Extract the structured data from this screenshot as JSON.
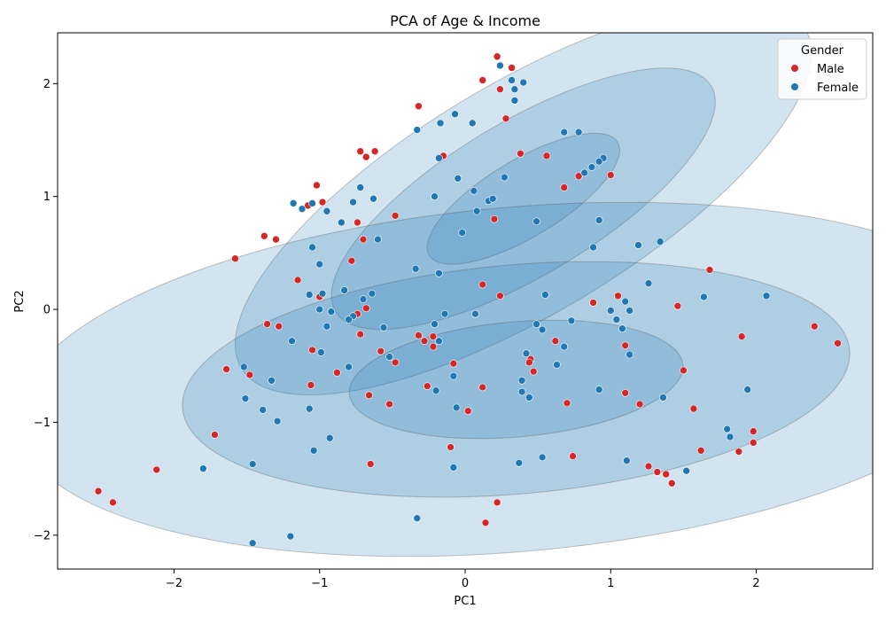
{
  "chart_data": {
    "type": "scatter",
    "title": "PCA of Age & Income",
    "xlabel": "PC1",
    "ylabel": "PC2",
    "xlim": [
      -2.8,
      2.8
    ],
    "ylim": [
      -2.3,
      2.45
    ],
    "xticks": [
      -2,
      -1,
      0,
      1,
      2
    ],
    "yticks": [
      -2,
      -1,
      0,
      1,
      2
    ],
    "xtick_labels": [
      "−2",
      "−1",
      "0",
      "1",
      "2"
    ],
    "ytick_labels": [
      "−2",
      "−1",
      "0",
      "1",
      "2"
    ],
    "grid": false,
    "legend": {
      "title": "Gender",
      "position": "top-right"
    },
    "series": [
      {
        "name": "Male",
        "color": "#d62728",
        "points": [
          [
            0.22,
            2.24
          ],
          [
            0.32,
            2.14
          ],
          [
            0.12,
            2.03
          ],
          [
            0.24,
            1.95
          ],
          [
            -0.32,
            1.8
          ],
          [
            0.28,
            1.69
          ],
          [
            -0.72,
            1.4
          ],
          [
            -0.62,
            1.4
          ],
          [
            -0.68,
            1.35
          ],
          [
            -0.15,
            1.36
          ],
          [
            0.38,
            1.38
          ],
          [
            0.56,
            1.36
          ],
          [
            0.78,
            1.18
          ],
          [
            1.0,
            1.19
          ],
          [
            0.68,
            1.08
          ],
          [
            -1.02,
            1.1
          ],
          [
            -1.08,
            0.92
          ],
          [
            -0.98,
            0.95
          ],
          [
            -0.74,
            0.77
          ],
          [
            -0.48,
            0.83
          ],
          [
            0.2,
            0.8
          ],
          [
            -1.38,
            0.65
          ],
          [
            -1.3,
            0.62
          ],
          [
            -0.7,
            0.62
          ],
          [
            -1.58,
            0.45
          ],
          [
            -0.78,
            0.43
          ],
          [
            -1.15,
            0.26
          ],
          [
            0.12,
            0.22
          ],
          [
            0.24,
            0.12
          ],
          [
            -1.0,
            0.11
          ],
          [
            -0.68,
            0.01
          ],
          [
            -0.74,
            -0.04
          ],
          [
            -1.36,
            -0.13
          ],
          [
            -1.28,
            -0.15
          ],
          [
            -0.72,
            -0.22
          ],
          [
            -0.32,
            -0.23
          ],
          [
            -0.28,
            -0.28
          ],
          [
            -0.22,
            -0.24
          ],
          [
            -0.22,
            -0.33
          ],
          [
            -1.05,
            -0.36
          ],
          [
            -0.58,
            -0.37
          ],
          [
            -0.48,
            -0.47
          ],
          [
            -0.08,
            -0.48
          ],
          [
            0.45,
            -0.44
          ],
          [
            0.44,
            -0.47
          ],
          [
            0.47,
            -0.55
          ],
          [
            0.62,
            -0.28
          ],
          [
            1.1,
            -0.32
          ],
          [
            1.05,
            0.12
          ],
          [
            0.88,
            0.06
          ],
          [
            1.46,
            0.03
          ],
          [
            1.68,
            0.35
          ],
          [
            1.9,
            -0.24
          ],
          [
            1.5,
            -0.54
          ],
          [
            -1.64,
            -0.53
          ],
          [
            -1.48,
            -0.58
          ],
          [
            -0.88,
            -0.56
          ],
          [
            -0.52,
            -0.84
          ],
          [
            -1.06,
            -0.67
          ],
          [
            -0.26,
            -0.68
          ],
          [
            0.12,
            -0.69
          ],
          [
            -0.66,
            -0.76
          ],
          [
            0.7,
            -0.83
          ],
          [
            1.1,
            -0.74
          ],
          [
            1.2,
            -0.84
          ],
          [
            1.57,
            -0.88
          ],
          [
            0.02,
            -0.9
          ],
          [
            -1.72,
            -1.11
          ],
          [
            -0.1,
            -1.22
          ],
          [
            0.74,
            -1.3
          ],
          [
            -0.65,
            -1.37
          ],
          [
            1.26,
            -1.39
          ],
          [
            1.62,
            -1.25
          ],
          [
            1.98,
            -1.08
          ],
          [
            1.98,
            -1.18
          ],
          [
            1.88,
            -1.26
          ],
          [
            1.32,
            -1.44
          ],
          [
            1.38,
            -1.46
          ],
          [
            1.42,
            -1.54
          ],
          [
            -2.12,
            -1.42
          ],
          [
            -2.52,
            -1.61
          ],
          [
            -2.42,
            -1.71
          ],
          [
            0.22,
            -1.71
          ],
          [
            0.14,
            -1.89
          ],
          [
            2.4,
            -0.15
          ],
          [
            2.56,
            -0.3
          ]
        ]
      },
      {
        "name": "Female",
        "color": "#1f77b4",
        "points": [
          [
            0.24,
            2.16
          ],
          [
            0.32,
            2.03
          ],
          [
            0.4,
            2.01
          ],
          [
            0.34,
            1.95
          ],
          [
            0.34,
            1.85
          ],
          [
            -0.07,
            1.73
          ],
          [
            -0.17,
            1.65
          ],
          [
            0.05,
            1.65
          ],
          [
            -0.33,
            1.59
          ],
          [
            0.68,
            1.57
          ],
          [
            0.78,
            1.57
          ],
          [
            0.95,
            1.34
          ],
          [
            0.92,
            1.31
          ],
          [
            0.87,
            1.26
          ],
          [
            0.82,
            1.21
          ],
          [
            -0.18,
            1.34
          ],
          [
            -0.05,
            1.16
          ],
          [
            0.27,
            1.17
          ],
          [
            -0.72,
            1.08
          ],
          [
            0.06,
            1.05
          ],
          [
            -1.18,
            0.94
          ],
          [
            -1.05,
            0.94
          ],
          [
            -1.12,
            0.89
          ],
          [
            -0.95,
            0.87
          ],
          [
            -0.77,
            0.95
          ],
          [
            -0.63,
            0.98
          ],
          [
            -0.21,
            1.0
          ],
          [
            0.16,
            0.96
          ],
          [
            0.19,
            0.98
          ],
          [
            0.08,
            0.87
          ],
          [
            0.49,
            0.78
          ],
          [
            0.92,
            0.79
          ],
          [
            -0.85,
            0.77
          ],
          [
            -0.6,
            0.62
          ],
          [
            -0.02,
            0.68
          ],
          [
            1.19,
            0.57
          ],
          [
            1.34,
            0.6
          ],
          [
            0.88,
            0.55
          ],
          [
            -1.05,
            0.55
          ],
          [
            -1.0,
            0.4
          ],
          [
            -0.34,
            0.36
          ],
          [
            -0.18,
            0.32
          ],
          [
            1.26,
            0.23
          ],
          [
            1.64,
            0.11
          ],
          [
            2.07,
            0.12
          ],
          [
            1.1,
            0.07
          ],
          [
            -1.07,
            0.13
          ],
          [
            -0.98,
            0.14
          ],
          [
            -0.83,
            0.17
          ],
          [
            -0.7,
            0.09
          ],
          [
            -0.64,
            0.14
          ],
          [
            0.55,
            0.13
          ],
          [
            1.0,
            -0.01
          ],
          [
            1.13,
            -0.01
          ],
          [
            1.04,
            -0.09
          ],
          [
            1.08,
            -0.17
          ],
          [
            -1.0,
            0.0
          ],
          [
            -0.92,
            -0.02
          ],
          [
            -0.77,
            -0.06
          ],
          [
            -0.8,
            -0.09
          ],
          [
            -0.95,
            -0.15
          ],
          [
            -0.56,
            -0.16
          ],
          [
            -0.14,
            -0.04
          ],
          [
            0.07,
            -0.04
          ],
          [
            -0.21,
            -0.13
          ],
          [
            0.49,
            -0.13
          ],
          [
            0.53,
            -0.18
          ],
          [
            0.73,
            -0.1
          ],
          [
            -1.19,
            -0.28
          ],
          [
            -0.18,
            -0.28
          ],
          [
            -0.99,
            -0.38
          ],
          [
            0.42,
            -0.39
          ],
          [
            0.68,
            -0.33
          ],
          [
            1.13,
            -0.4
          ],
          [
            -0.8,
            -0.51
          ],
          [
            -0.52,
            -0.42
          ],
          [
            0.63,
            -0.49
          ],
          [
            -1.52,
            -0.51
          ],
          [
            -1.33,
            -0.63
          ],
          [
            -0.08,
            -0.59
          ],
          [
            -0.2,
            -0.72
          ],
          [
            0.39,
            -0.63
          ],
          [
            0.39,
            -0.73
          ],
          [
            0.44,
            -0.78
          ],
          [
            0.92,
            -0.71
          ],
          [
            1.36,
            -0.78
          ],
          [
            1.94,
            -0.71
          ],
          [
            -1.51,
            -0.79
          ],
          [
            -1.39,
            -0.89
          ],
          [
            -1.07,
            -0.88
          ],
          [
            -0.06,
            -0.87
          ],
          [
            -1.29,
            -0.99
          ],
          [
            -0.93,
            -1.14
          ],
          [
            -1.04,
            -1.25
          ],
          [
            1.8,
            -1.06
          ],
          [
            1.82,
            -1.13
          ],
          [
            -1.8,
            -1.41
          ],
          [
            -1.46,
            -1.37
          ],
          [
            -0.08,
            -1.4
          ],
          [
            0.37,
            -1.36
          ],
          [
            0.53,
            -1.31
          ],
          [
            1.11,
            -1.34
          ],
          [
            1.52,
            -1.43
          ],
          [
            -0.33,
            -1.85
          ],
          [
            -1.2,
            -2.01
          ],
          [
            -1.46,
            -2.07
          ]
        ]
      }
    ],
    "ellipses": [
      {
        "group": "Female",
        "center": [
          0.4,
          0.98
        ],
        "width": 4.52,
        "height": 2.04,
        "angle": 31,
        "stdevs": 3,
        "color": "#1f77b4",
        "opacity": 0.2
      },
      {
        "group": "Female",
        "center": [
          0.4,
          0.98
        ],
        "width": 3.01,
        "height": 1.36,
        "angle": 31,
        "stdevs": 2,
        "color": "#1f77b4",
        "opacity": 0.2
      },
      {
        "group": "Female",
        "center": [
          0.4,
          0.98
        ],
        "width": 1.51,
        "height": 0.68,
        "angle": 31,
        "stdevs": 1,
        "color": "#1f77b4",
        "opacity": 0.2
      },
      {
        "group": "Male",
        "center": [
          0.35,
          -0.62
        ],
        "width": 6.9,
        "height": 3.05,
        "angle": 5,
        "stdevs": 3,
        "color": "#1f77b4",
        "opacity": 0.2
      },
      {
        "group": "Male",
        "center": [
          0.35,
          -0.62
        ],
        "width": 4.6,
        "height": 2.03,
        "angle": 5,
        "stdevs": 2,
        "color": "#1f77b4",
        "opacity": 0.2
      },
      {
        "group": "Male",
        "center": [
          0.35,
          -0.62
        ],
        "width": 2.3,
        "height": 1.02,
        "angle": 5,
        "stdevs": 1,
        "color": "#1f77b4",
        "opacity": 0.2
      }
    ]
  }
}
